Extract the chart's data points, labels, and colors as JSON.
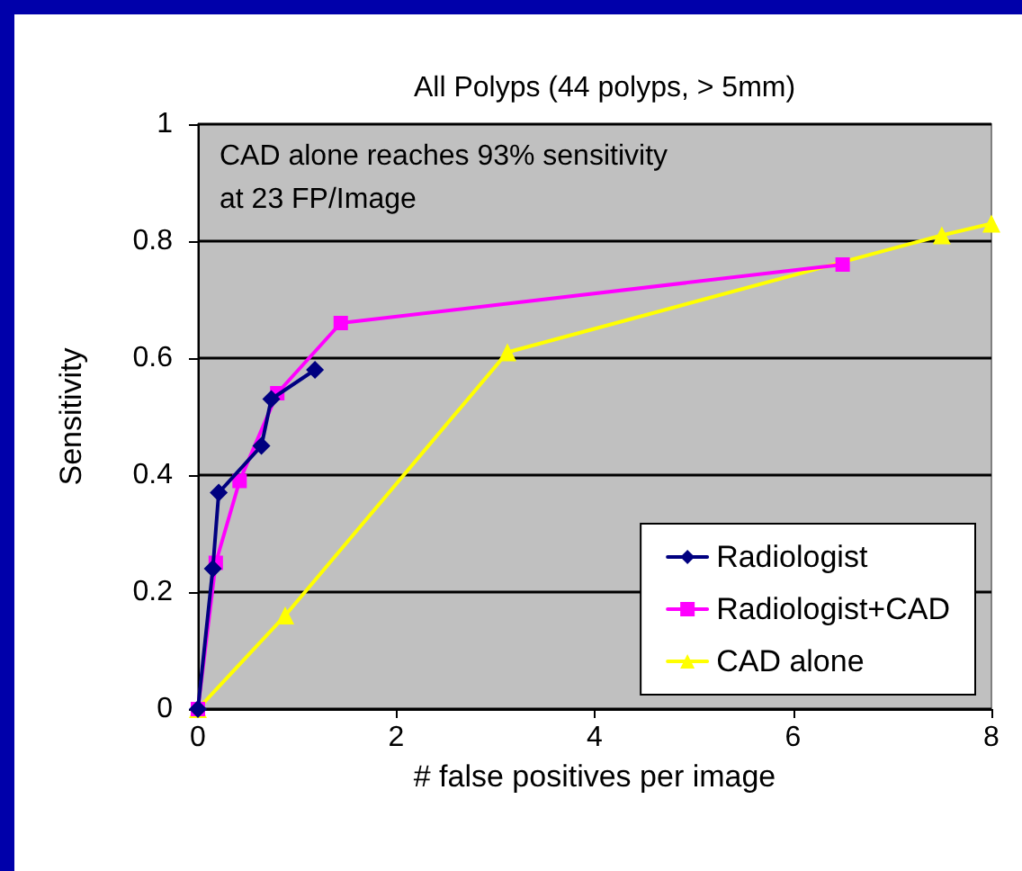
{
  "chart_data": {
    "type": "line",
    "title": "All Polyps (44 polyps, > 5mm)",
    "xlabel": "# false positives per image",
    "ylabel": "Sensitivity",
    "annotations": [
      "CAD alone reaches 93% sensitivity\nat 23 FP/Image"
    ],
    "series": [
      {
        "name": "Radiologist",
        "color": "#000080",
        "marker": "diamond",
        "x": [
          0,
          0.15,
          0.21,
          0.64,
          0.74,
          1.18
        ],
        "values": [
          0,
          0.24,
          0.37,
          0.45,
          0.53,
          0.58
        ]
      },
      {
        "name": "Radiologist+CAD",
        "color": "#ff00ff",
        "marker": "square",
        "x": [
          0,
          0.18,
          0.42,
          0.8,
          1.44,
          6.5
        ],
        "values": [
          0,
          0.25,
          0.39,
          0.54,
          0.66,
          0.76
        ]
      },
      {
        "name": "CAD alone",
        "color": "#ffff00",
        "marker": "triangle",
        "x": [
          0,
          0.88,
          3.12,
          7.5,
          8
        ],
        "values": [
          0,
          0.16,
          0.61,
          0.81,
          0.83
        ]
      }
    ],
    "xlim": [
      0,
      8
    ],
    "xticks": [
      0,
      2,
      4,
      6,
      8
    ],
    "ylim": [
      0,
      1
    ],
    "yticks": [
      0,
      0.2,
      0.4,
      0.6,
      0.8,
      1
    ],
    "grid": "y",
    "legend": "bottom right",
    "line_style": "solid"
  }
}
